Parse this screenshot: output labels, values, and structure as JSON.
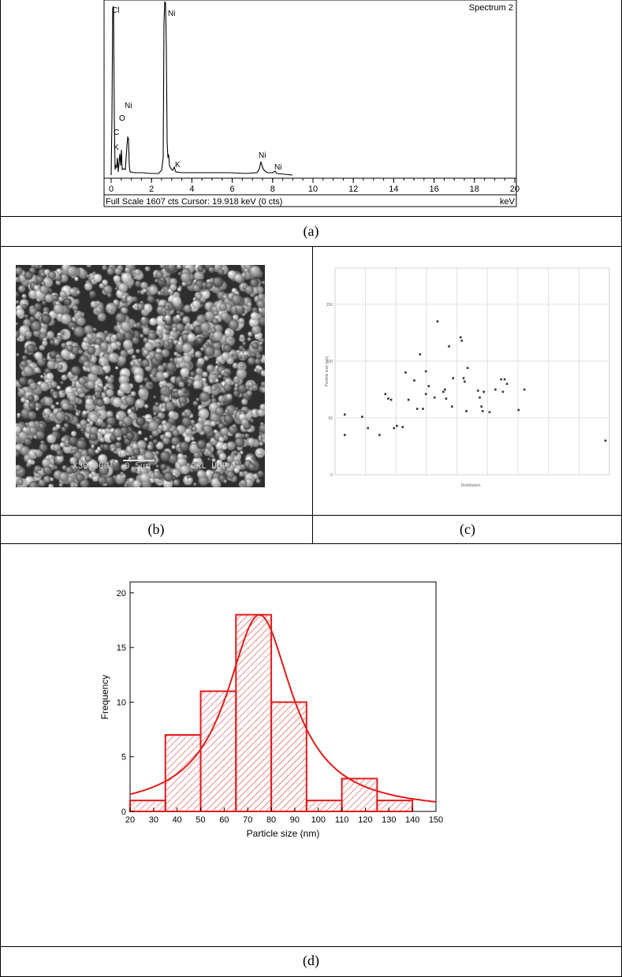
{
  "captions": {
    "a": "(a)",
    "b": "(b)",
    "c": "(c)",
    "d": "(d)"
  },
  "spectrum": {
    "title": "Spectrum 2",
    "footer": "Full Scale 1607 cts  Cursor: 19.918 keV (0 cts)",
    "x_unit": "keV",
    "x_ticks": [
      "0",
      "2",
      "4",
      "6",
      "8",
      "10",
      "12",
      "14",
      "16",
      "18",
      "20"
    ],
    "peaks": [
      {
        "label": "Cl",
        "kev": 0.05
      },
      {
        "label": "O",
        "kev": 0.52
      },
      {
        "label": "C",
        "kev": 0.27
      },
      {
        "label": "K",
        "kev": 0.25
      },
      {
        "label": "Ni",
        "kev": 0.85
      },
      {
        "label": "Ni",
        "kev": 2.6
      },
      {
        "label": "K",
        "kev": 3.3
      },
      {
        "label": "Ni",
        "kev": 7.45
      },
      {
        "label": "Ni",
        "kev": 8.25
      }
    ]
  },
  "sem": {
    "label_magnification": "X30,000",
    "label_scale": "0.5μm",
    "label_lab": "CRL UOP"
  },
  "scatter": {
    "xlabel": "Distribution",
    "ylabel": "Particle size (nm)",
    "y_ticks": [
      "150",
      "100",
      "50",
      "0"
    ],
    "ylim": [
      0,
      175
    ],
    "points": [
      [
        1,
        53
      ],
      [
        1,
        35
      ],
      [
        4,
        51
      ],
      [
        5,
        41
      ],
      [
        7,
        35
      ],
      [
        8,
        71
      ],
      [
        8.5,
        67
      ],
      [
        9,
        66
      ],
      [
        9.5,
        41
      ],
      [
        10,
        43
      ],
      [
        11,
        42
      ],
      [
        11.5,
        90
      ],
      [
        12,
        66
      ],
      [
        13,
        83
      ],
      [
        13.5,
        58
      ],
      [
        14,
        106
      ],
      [
        14.5,
        58
      ],
      [
        15,
        71
      ],
      [
        15,
        91
      ],
      [
        15.5,
        78
      ],
      [
        16.5,
        68
      ],
      [
        17,
        135
      ],
      [
        18,
        73
      ],
      [
        18.3,
        75
      ],
      [
        18.5,
        67
      ],
      [
        19,
        113
      ],
      [
        19.5,
        60
      ],
      [
        19.7,
        85
      ],
      [
        21,
        121
      ],
      [
        21.2,
        118
      ],
      [
        21.5,
        85
      ],
      [
        21.7,
        82
      ],
      [
        22,
        56
      ],
      [
        22.2,
        94
      ],
      [
        24,
        74
      ],
      [
        24.3,
        68
      ],
      [
        24.6,
        60
      ],
      [
        24.8,
        56
      ],
      [
        25,
        73
      ],
      [
        26,
        55
      ],
      [
        27,
        75
      ],
      [
        28,
        84
      ],
      [
        28.3,
        73
      ],
      [
        28.6,
        84
      ],
      [
        29,
        80
      ],
      [
        31,
        57
      ],
      [
        32,
        75
      ],
      [
        46,
        30
      ]
    ]
  },
  "chart_data": {
    "type": "bar",
    "xlabel": "Particle size (nm)",
    "ylabel": "Frequency",
    "xlim": [
      20,
      150
    ],
    "ylim": [
      0,
      21
    ],
    "x_ticks": [
      20,
      30,
      40,
      50,
      60,
      70,
      80,
      90,
      100,
      110,
      120,
      130,
      140,
      150
    ],
    "y_ticks": [
      0,
      5,
      10,
      15,
      20
    ],
    "bins": [
      {
        "from": 20,
        "to": 35,
        "value": 1
      },
      {
        "from": 35,
        "to": 50,
        "value": 7
      },
      {
        "from": 50,
        "to": 65,
        "value": 11
      },
      {
        "from": 65,
        "to": 80,
        "value": 18
      },
      {
        "from": 80,
        "to": 95,
        "value": 10
      },
      {
        "from": 95,
        "to": 110,
        "value": 1
      },
      {
        "from": 110,
        "to": 125,
        "value": 3
      },
      {
        "from": 125,
        "to": 140,
        "value": 1
      }
    ],
    "fit": {
      "type": "lorentzian-like",
      "center": 75,
      "peak": 18,
      "width": 34
    },
    "color": "#e11b1b"
  }
}
